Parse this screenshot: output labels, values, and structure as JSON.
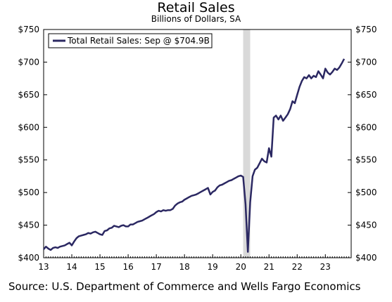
{
  "chart_data": {
    "type": "line",
    "title": "Retail Sales",
    "subtitle": "Billions of Dollars, SA",
    "source": "Source: U.S. Department of Commerce and Wells Fargo Economics",
    "legend_text": "Total Retail Sales: Sep @ $704.9B",
    "legend_position": "top-left",
    "grid": false,
    "ylim": [
      400,
      750
    ],
    "yticks": [
      400,
      450,
      500,
      550,
      600,
      650,
      700,
      750
    ],
    "ytick_labels": [
      "$400",
      "$450",
      "$500",
      "$550",
      "$600",
      "$650",
      "$700",
      "$750"
    ],
    "xlim": [
      2013.0,
      2023.917
    ],
    "xticks": [
      2013,
      2014,
      2015,
      2016,
      2017,
      2018,
      2019,
      2020,
      2021,
      2022,
      2023
    ],
    "xtick_labels": [
      "13",
      "14",
      "15",
      "16",
      "17",
      "18",
      "19",
      "20",
      "21",
      "22",
      "23"
    ],
    "recession": {
      "start": 2020.083,
      "end": 2020.333
    },
    "colors": {
      "line": "#2b2862",
      "recession": "#d9d9d9",
      "axis": "#000000"
    },
    "series": [
      {
        "name": "Total Retail Sales",
        "x": [
          2013.0,
          2013.083,
          2013.167,
          2013.25,
          2013.333,
          2013.417,
          2013.5,
          2013.583,
          2013.667,
          2013.75,
          2013.833,
          2013.917,
          2014.0,
          2014.083,
          2014.167,
          2014.25,
          2014.333,
          2014.417,
          2014.5,
          2014.583,
          2014.667,
          2014.75,
          2014.833,
          2014.917,
          2015.0,
          2015.083,
          2015.167,
          2015.25,
          2015.333,
          2015.417,
          2015.5,
          2015.583,
          2015.667,
          2015.75,
          2015.833,
          2015.917,
          2016.0,
          2016.083,
          2016.167,
          2016.25,
          2016.333,
          2016.417,
          2016.5,
          2016.583,
          2016.667,
          2016.75,
          2016.833,
          2016.917,
          2017.0,
          2017.083,
          2017.167,
          2017.25,
          2017.333,
          2017.417,
          2017.5,
          2017.583,
          2017.667,
          2017.75,
          2017.833,
          2017.917,
          2018.0,
          2018.083,
          2018.167,
          2018.25,
          2018.333,
          2018.417,
          2018.5,
          2018.583,
          2018.667,
          2018.75,
          2018.833,
          2018.917,
          2019.0,
          2019.083,
          2019.167,
          2019.25,
          2019.333,
          2019.417,
          2019.5,
          2019.583,
          2019.667,
          2019.75,
          2019.833,
          2019.917,
          2020.0,
          2020.083,
          2020.167,
          2020.25,
          2020.333,
          2020.417,
          2020.5,
          2020.583,
          2020.667,
          2020.75,
          2020.833,
          2020.917,
          2021.0,
          2021.083,
          2021.167,
          2021.25,
          2021.333,
          2021.417,
          2021.5,
          2021.583,
          2021.667,
          2021.75,
          2021.833,
          2021.917,
          2022.0,
          2022.083,
          2022.167,
          2022.25,
          2022.333,
          2022.417,
          2022.5,
          2022.583,
          2022.667,
          2022.75,
          2022.833,
          2022.917,
          2023.0,
          2023.083,
          2023.167,
          2023.25,
          2023.333,
          2023.417,
          2023.5,
          2023.583,
          2023.667
        ],
        "values": [
          413,
          417,
          414,
          412,
          415,
          416,
          415,
          417,
          418,
          419,
          421,
          423,
          419,
          425,
          430,
          433,
          434,
          435,
          436,
          438,
          437,
          439,
          440,
          438,
          436,
          435,
          441,
          442,
          445,
          446,
          449,
          448,
          447,
          449,
          450,
          448,
          448,
          451,
          451,
          453,
          455,
          456,
          457,
          459,
          461,
          463,
          465,
          467,
          470,
          472,
          471,
          473,
          472,
          473,
          473,
          475,
          480,
          483,
          485,
          486,
          489,
          491,
          493,
          495,
          496,
          497,
          499,
          501,
          503,
          505,
          507,
          497,
          501,
          503,
          508,
          511,
          512,
          514,
          516,
          518,
          519,
          521,
          523,
          525,
          526,
          524,
          482,
          409,
          485,
          525,
          535,
          538,
          545,
          552,
          548,
          546,
          568,
          555,
          615,
          618,
          612,
          618,
          610,
          615,
          620,
          628,
          640,
          637,
          650,
          662,
          671,
          677,
          675,
          680,
          675,
          679,
          677,
          686,
          681,
          675,
          690,
          684,
          681,
          685,
          690,
          688,
          692,
          698,
          705
        ]
      }
    ]
  }
}
